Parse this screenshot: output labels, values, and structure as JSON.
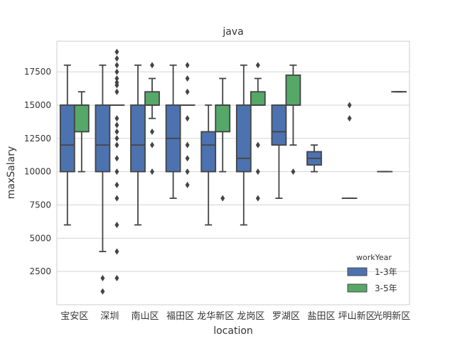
{
  "chart_data": {
    "type": "boxplot",
    "title": "java",
    "xlabel": "location",
    "ylabel": "maxSalary",
    "ylim": [
      0,
      19800
    ],
    "yticks": [
      2500,
      5000,
      7500,
      10000,
      12500,
      15000,
      17500
    ],
    "ytick_labels": [
      "2500",
      "5000",
      "7500",
      "10000",
      "12500",
      "15000",
      "17500"
    ],
    "grid": "horizontal",
    "legend": {
      "title": "workYear",
      "placement": "bottom-right",
      "entries": [
        "1-3年",
        "3-5年"
      ]
    },
    "categories": [
      "宝安区",
      "深圳",
      "南山区",
      "福田区",
      "龙华新区",
      "龙岗区",
      "罗湖区",
      "盐田区",
      "坪山新区",
      "光明新区"
    ],
    "series": [
      {
        "name": "1-3年",
        "color": "#4c72b0",
        "boxes": [
          {
            "whislo": 6000,
            "q1": 10000,
            "med": 12000,
            "q3": 15000,
            "whishi": 18000,
            "fliers": []
          },
          {
            "whislo": 4000,
            "q1": 10000,
            "med": 12000,
            "q3": 15000,
            "whishi": 18000,
            "fliers": [
              2000,
              1000
            ]
          },
          {
            "whislo": 6000,
            "q1": 10000,
            "med": 12000,
            "q3": 15000,
            "whishi": 18000,
            "fliers": []
          },
          {
            "whislo": 8000,
            "q1": 10000,
            "med": 12500,
            "q3": 15000,
            "whishi": 18000,
            "fliers": []
          },
          {
            "whislo": 6000,
            "q1": 10000,
            "med": 12000,
            "q3": 13000,
            "whishi": 15000,
            "fliers": []
          },
          {
            "whislo": 6000,
            "q1": 10000,
            "med": 11000,
            "q3": 15000,
            "whishi": 18000,
            "fliers": []
          },
          {
            "whislo": 8000,
            "q1": 12000,
            "med": 13000,
            "q3": 15000,
            "whishi": 15000,
            "fliers": []
          },
          {
            "whislo": 10000,
            "q1": 10500,
            "med": 11000,
            "q3": 11500,
            "whishi": 12000,
            "fliers": []
          },
          {
            "whislo": 8000,
            "q1": 8000,
            "med": 8000,
            "q3": 8000,
            "whishi": 8000,
            "fliers": [
              15000,
              14000
            ]
          },
          {
            "whislo": 10000,
            "q1": 10000,
            "med": 10000,
            "q3": 10000,
            "whishi": 10000,
            "fliers": []
          }
        ]
      },
      {
        "name": "3-5年",
        "color": "#55a868",
        "boxes": [
          {
            "whislo": 10000,
            "q1": 13000,
            "med": 15000,
            "q3": 15000,
            "whishi": 16000,
            "fliers": []
          },
          {
            "whislo": 15000,
            "q1": 15000,
            "med": 15000,
            "q3": 15000,
            "whishi": 15000,
            "fliers": [
              19000,
              18500,
              18000,
              17500,
              17000,
              16700,
              16500,
              16000,
              14000,
              13500,
              13000,
              12500,
              12000,
              11000,
              10000,
              9000,
              8000,
              6000,
              4000,
              2000
            ]
          },
          {
            "whislo": 14000,
            "q1": 15000,
            "med": 15000,
            "q3": 16000,
            "whishi": 17000,
            "fliers": [
              18000,
              13000,
              12000,
              10000
            ]
          },
          {
            "whislo": 15000,
            "q1": 15000,
            "med": 15000,
            "q3": 15000,
            "whishi": 15000,
            "fliers": [
              18000,
              17000,
              16000,
              14000,
              12000,
              11000,
              10000,
              9000
            ]
          },
          {
            "whislo": 10000,
            "q1": 13000,
            "med": 15000,
            "q3": 15000,
            "whishi": 17000,
            "fliers": [
              8000
            ]
          },
          {
            "whislo": 15000,
            "q1": 15000,
            "med": 15000,
            "q3": 16000,
            "whishi": 17000,
            "fliers": [
              18000,
              12000,
              10000,
              8000
            ]
          },
          {
            "whislo": 12000,
            "q1": 15000,
            "med": 15000,
            "q3": 17250,
            "whishi": 18000,
            "fliers": [
              10000
            ]
          },
          null,
          null,
          {
            "whislo": 16000,
            "q1": 16000,
            "med": 16000,
            "q3": 16000,
            "whishi": 16000,
            "fliers": []
          }
        ]
      }
    ]
  }
}
